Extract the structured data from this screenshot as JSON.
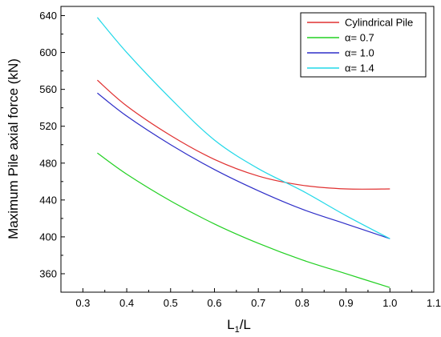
{
  "chart_data": {
    "type": "line",
    "xlabel_main": "L",
    "xlabel_sub": "1",
    "xlabel_tail": "/L",
    "ylabel": "Maximum Pile axial force (kN)",
    "xlim": [
      0.25,
      1.1
    ],
    "ylim": [
      340,
      650
    ],
    "xticks": [
      0.3,
      0.4,
      0.5,
      0.6,
      0.7,
      0.8,
      0.9,
      1.0,
      1.1
    ],
    "xtick_labels": [
      "0.3",
      "0.4",
      "0.5",
      "0.6",
      "0.7",
      "0.8",
      "0.9",
      "1.0",
      "1.1"
    ],
    "yticks": [
      360,
      400,
      440,
      480,
      520,
      560,
      600,
      640
    ],
    "ytick_labels": [
      "360",
      "400",
      "440",
      "480",
      "520",
      "560",
      "600",
      "640"
    ],
    "grid": false,
    "legend_position": "top-right",
    "series": [
      {
        "name": "Cylindrical Pile",
        "color": "#e03030",
        "x": [
          0.333,
          0.4,
          0.5,
          0.6,
          0.7,
          0.8,
          0.9,
          1.0
        ],
        "y": [
          570,
          542,
          510,
          484,
          466,
          456,
          452,
          452
        ]
      },
      {
        "name": "α= 0.7",
        "color": "#22d022",
        "x": [
          0.333,
          0.4,
          0.5,
          0.6,
          0.7,
          0.8,
          0.9,
          1.0
        ],
        "y": [
          491,
          468,
          439,
          414,
          393,
          375,
          360,
          345
        ]
      },
      {
        "name": "α= 1.0",
        "color": "#2e2ec8",
        "x": [
          0.333,
          0.4,
          0.5,
          0.6,
          0.7,
          0.8,
          0.9,
          1.0
        ],
        "y": [
          556,
          531,
          500,
          473,
          450,
          430,
          414,
          398
        ]
      },
      {
        "name": "α= 1.4",
        "color": "#22d8e8",
        "x": [
          0.333,
          0.4,
          0.5,
          0.6,
          0.7,
          0.8,
          0.9,
          1.0
        ],
        "y": [
          638,
          600,
          550,
          505,
          474,
          450,
          423,
          398
        ]
      }
    ]
  }
}
